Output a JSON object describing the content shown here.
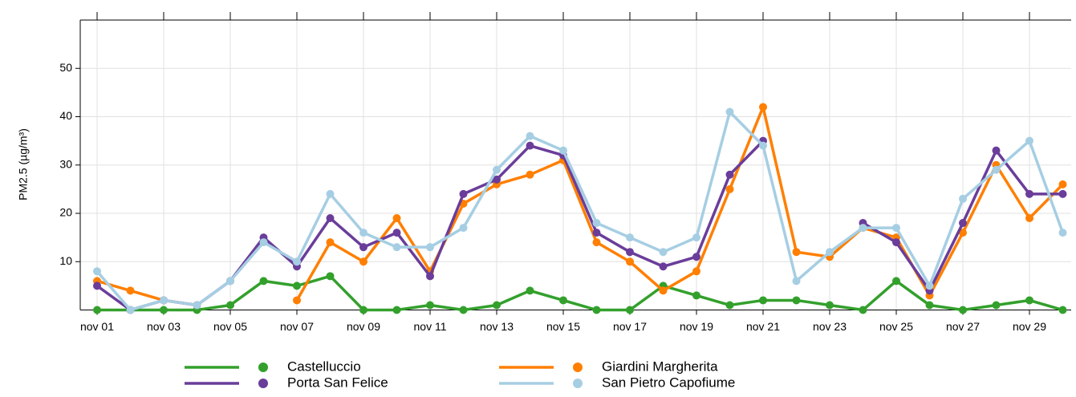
{
  "chart_data": {
    "type": "line",
    "y_label": "PM2.5 (µg/m³)",
    "categories": [
      "nov 01",
      null,
      "nov 03",
      null,
      "nov 05",
      null,
      "nov 07",
      null,
      "nov 09",
      null,
      "nov 11",
      null,
      "nov 13",
      null,
      "nov 15",
      null,
      "nov 17",
      null,
      "nov 19",
      null,
      "nov 21",
      null,
      "nov 23",
      null,
      "nov 25",
      null,
      "nov 27",
      null,
      "nov 29",
      null
    ],
    "series": [
      {
        "name": "Castelluccio",
        "color": "#33a02c",
        "values": [
          0,
          0,
          0,
          0,
          1,
          6,
          5,
          7,
          0,
          0,
          1,
          0,
          1,
          4,
          2,
          0,
          0,
          5,
          3,
          1,
          2,
          2,
          1,
          0,
          6,
          1,
          0,
          1,
          2,
          0
        ]
      },
      {
        "name": "Giardini Margherita",
        "color": "#ff7f00",
        "values": [
          6,
          4,
          2,
          1,
          null,
          null,
          2,
          14,
          10,
          19,
          8,
          22,
          26,
          28,
          31,
          14,
          10,
          4,
          8,
          25,
          42,
          12,
          11,
          17,
          15,
          3,
          16,
          30,
          19,
          26
        ]
      },
      {
        "name": "Porta San Felice",
        "color": "#6a3d9a",
        "values": [
          5,
          0,
          2,
          1,
          6,
          15,
          9,
          19,
          13,
          16,
          7,
          24,
          27,
          34,
          32,
          16,
          12,
          9,
          11,
          28,
          35,
          null,
          null,
          18,
          14,
          4,
          18,
          33,
          24,
          24
        ]
      },
      {
        "name": "San Pietro Capofiume",
        "color": "#a6cee3",
        "values": [
          8,
          0,
          2,
          1,
          6,
          14,
          10,
          24,
          16,
          13,
          13,
          17,
          29,
          36,
          33,
          18,
          15,
          12,
          15,
          41,
          34,
          6,
          12,
          17,
          17,
          5,
          23,
          29,
          35,
          16
        ]
      }
    ],
    "ylim": [
      0,
      60
    ],
    "yticks": [
      10,
      20,
      30,
      40,
      50
    ],
    "grid": true
  }
}
